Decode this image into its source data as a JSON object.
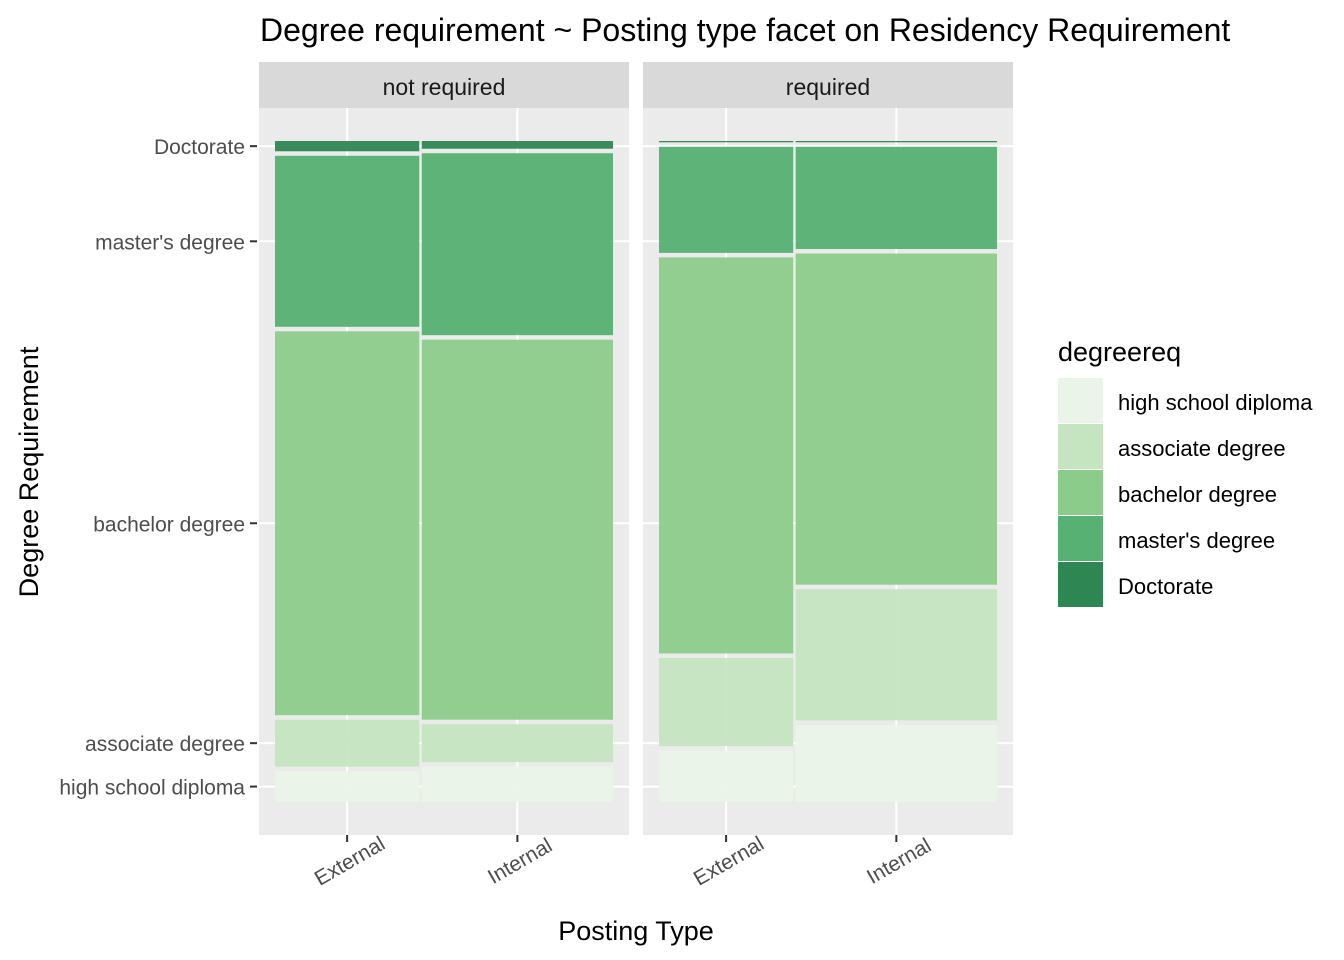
{
  "chart_data": {
    "type": "mosaic",
    "title": "Degree requirement ~ Posting type facet on Residency Requirement",
    "xlabel": "Posting Type",
    "ylabel": "Degree Requirement",
    "legend": {
      "title": "degreereq",
      "position": "right",
      "entries": [
        "high school diploma",
        "associate degree",
        "bachelor degree",
        "master's degree",
        "Doctorate"
      ]
    },
    "colors": {
      "high school diploma": "#ebf4e8",
      "associate degree": "#c5e5c1",
      "bachelor degree": "#8ccc8b",
      "master's degree": "#56b172",
      "Doctorate": "#2e8753"
    },
    "y_ticks": [
      "Doctorate",
      "master's degree",
      "bachelor degree",
      "associate degree",
      "high school diploma"
    ],
    "facets": [
      {
        "label": "not required",
        "columns": [
          {
            "label": "External",
            "width": 0.43,
            "shares": {
              "high school diploma": 0.048,
              "associate degree": 0.073,
              "bachelor degree": 0.597,
              "master's degree": 0.266,
              "Doctorate": 0.016
            }
          },
          {
            "label": "Internal",
            "width": 0.57,
            "shares": {
              "high school diploma": 0.055,
              "associate degree": 0.059,
              "bachelor degree": 0.591,
              "master's degree": 0.283,
              "Doctorate": 0.012
            }
          }
        ]
      },
      {
        "label": "required",
        "columns": [
          {
            "label": "External",
            "width": 0.4,
            "shares": {
              "high school diploma": 0.08,
              "associate degree": 0.137,
              "bachelor degree": 0.616,
              "master's degree": 0.165,
              "Doctorate": 0.002
            }
          },
          {
            "label": "Internal",
            "width": 0.6,
            "shares": {
              "high school diploma": 0.12,
              "associate degree": 0.204,
              "bachelor degree": 0.515,
              "master's degree": 0.159,
              "Doctorate": 0.002
            }
          }
        ]
      }
    ]
  }
}
